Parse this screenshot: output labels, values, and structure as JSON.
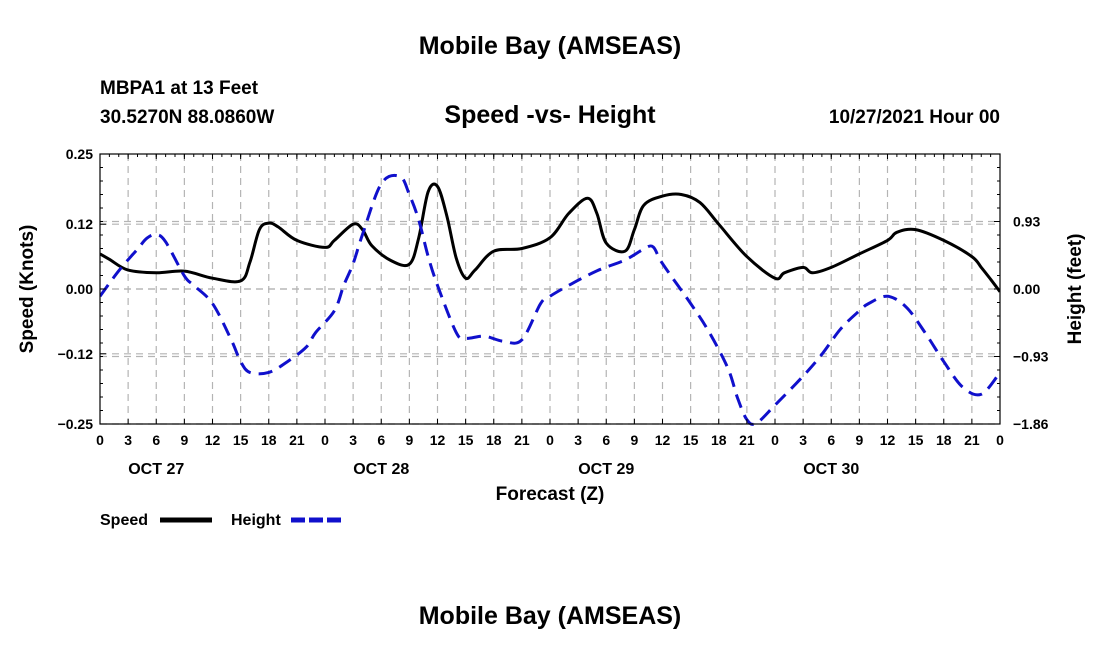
{
  "header": {
    "title": "Mobile Bay (AMSEAS)",
    "station": "MBPA1 at 13 Feet",
    "coords": "30.5270N  88.0860W",
    "chart_title": "Speed -vs- Height",
    "run_time": "10/27/2021 Hour 00"
  },
  "footer": {
    "title": "Mobile Bay (AMSEAS)"
  },
  "chart_data": {
    "type": "line",
    "title": "Speed -vs- Height",
    "xlabel": "Forecast (Z)",
    "ylabel_left": "Speed (Knots)",
    "ylabel_right": "Height (feet)",
    "x_range": [
      0,
      96
    ],
    "x_tick_step": 3,
    "x_tick_labels": [
      "0",
      "3",
      "6",
      "9",
      "12",
      "15",
      "18",
      "21",
      "0",
      "3",
      "6",
      "9",
      "12",
      "15",
      "18",
      "21",
      "0",
      "3",
      "6",
      "9",
      "12",
      "15",
      "18",
      "21",
      "0",
      "3",
      "6",
      "9",
      "12",
      "15",
      "18",
      "21",
      "0"
    ],
    "day_labels": [
      {
        "hour": 6,
        "label": "OCT 27"
      },
      {
        "hour": 30,
        "label": "OCT 28"
      },
      {
        "hour": 54,
        "label": "OCT 29"
      },
      {
        "hour": 78,
        "label": "OCT 30"
      }
    ],
    "left_axis": {
      "range": [
        -0.25,
        0.25
      ],
      "ticks": [
        0.25,
        0.12,
        0.0,
        -0.12,
        -0.25
      ],
      "tick_labels": [
        "0.25",
        "0.12",
        "0.00",
        "−0.12",
        "−0.25"
      ]
    },
    "right_axis": {
      "range": [
        -1.86,
        1.86
      ],
      "ticks": [
        0.93,
        0.0,
        -0.93,
        -1.86
      ],
      "tick_labels": [
        "0.93",
        "0.00",
        "−0.93",
        "−1.86"
      ]
    },
    "grid": true,
    "legend_position": "bottom-left",
    "series": [
      {
        "name": "Speed",
        "color": "#000000",
        "dash": "solid",
        "axis": "left",
        "x": [
          0,
          1,
          3,
          6,
          9,
          12,
          15,
          16,
          17,
          18,
          19,
          21,
          24,
          25,
          27,
          28,
          29,
          31,
          33,
          34,
          35,
          36,
          37,
          38,
          39,
          40,
          42,
          45,
          48,
          50,
          52,
          53,
          54,
          56,
          57,
          58,
          60,
          62,
          64,
          66,
          69,
          72,
          73,
          75,
          76,
          78,
          81,
          84,
          85,
          87,
          90,
          93,
          94,
          95,
          96
        ],
        "y": [
          0.065,
          0.055,
          0.035,
          0.03,
          0.033,
          0.02,
          0.015,
          0.05,
          0.11,
          0.122,
          0.115,
          0.09,
          0.077,
          0.09,
          0.12,
          0.11,
          0.08,
          0.053,
          0.046,
          0.095,
          0.18,
          0.19,
          0.135,
          0.057,
          0.02,
          0.035,
          0.07,
          0.075,
          0.095,
          0.14,
          0.168,
          0.14,
          0.085,
          0.07,
          0.11,
          0.155,
          0.172,
          0.175,
          0.16,
          0.12,
          0.06,
          0.02,
          0.03,
          0.04,
          0.03,
          0.04,
          0.065,
          0.09,
          0.105,
          0.11,
          0.09,
          0.06,
          0.04,
          0.018,
          -0.005
        ]
      },
      {
        "name": "Height",
        "color": "#1010cc",
        "dash": "dashed",
        "axis": "right",
        "x": [
          0,
          2,
          4,
          5,
          6,
          7,
          9,
          10,
          12,
          14,
          15,
          16,
          18,
          20,
          22,
          23,
          25,
          26,
          27,
          28,
          30,
          32,
          33,
          34,
          35,
          36,
          38,
          39,
          41,
          43,
          45,
          47,
          48,
          50,
          53,
          56,
          58,
          59,
          60,
          63,
          65,
          67,
          68,
          69,
          70,
          72,
          75,
          77,
          79,
          81,
          82,
          84,
          86,
          88,
          90,
          92,
          94,
          96
        ],
        "y": [
          -0.1,
          0.25,
          0.55,
          0.7,
          0.75,
          0.65,
          0.18,
          0.05,
          -0.2,
          -0.7,
          -1.0,
          -1.15,
          -1.15,
          -1.0,
          -0.8,
          -0.6,
          -0.3,
          0.05,
          0.35,
          0.75,
          1.45,
          1.55,
          1.3,
          0.95,
          0.45,
          0.05,
          -0.6,
          -0.68,
          -0.65,
          -0.72,
          -0.7,
          -0.2,
          -0.1,
          0.05,
          0.25,
          0.4,
          0.55,
          0.58,
          0.35,
          -0.2,
          -0.6,
          -1.1,
          -1.5,
          -1.8,
          -1.85,
          -1.6,
          -1.2,
          -0.9,
          -0.55,
          -0.3,
          -0.2,
          -0.1,
          -0.25,
          -0.6,
          -1.0,
          -1.35,
          -1.45,
          -1.15
        ]
      }
    ]
  },
  "legend": {
    "speed_label": "Speed",
    "height_label": "Height"
  }
}
